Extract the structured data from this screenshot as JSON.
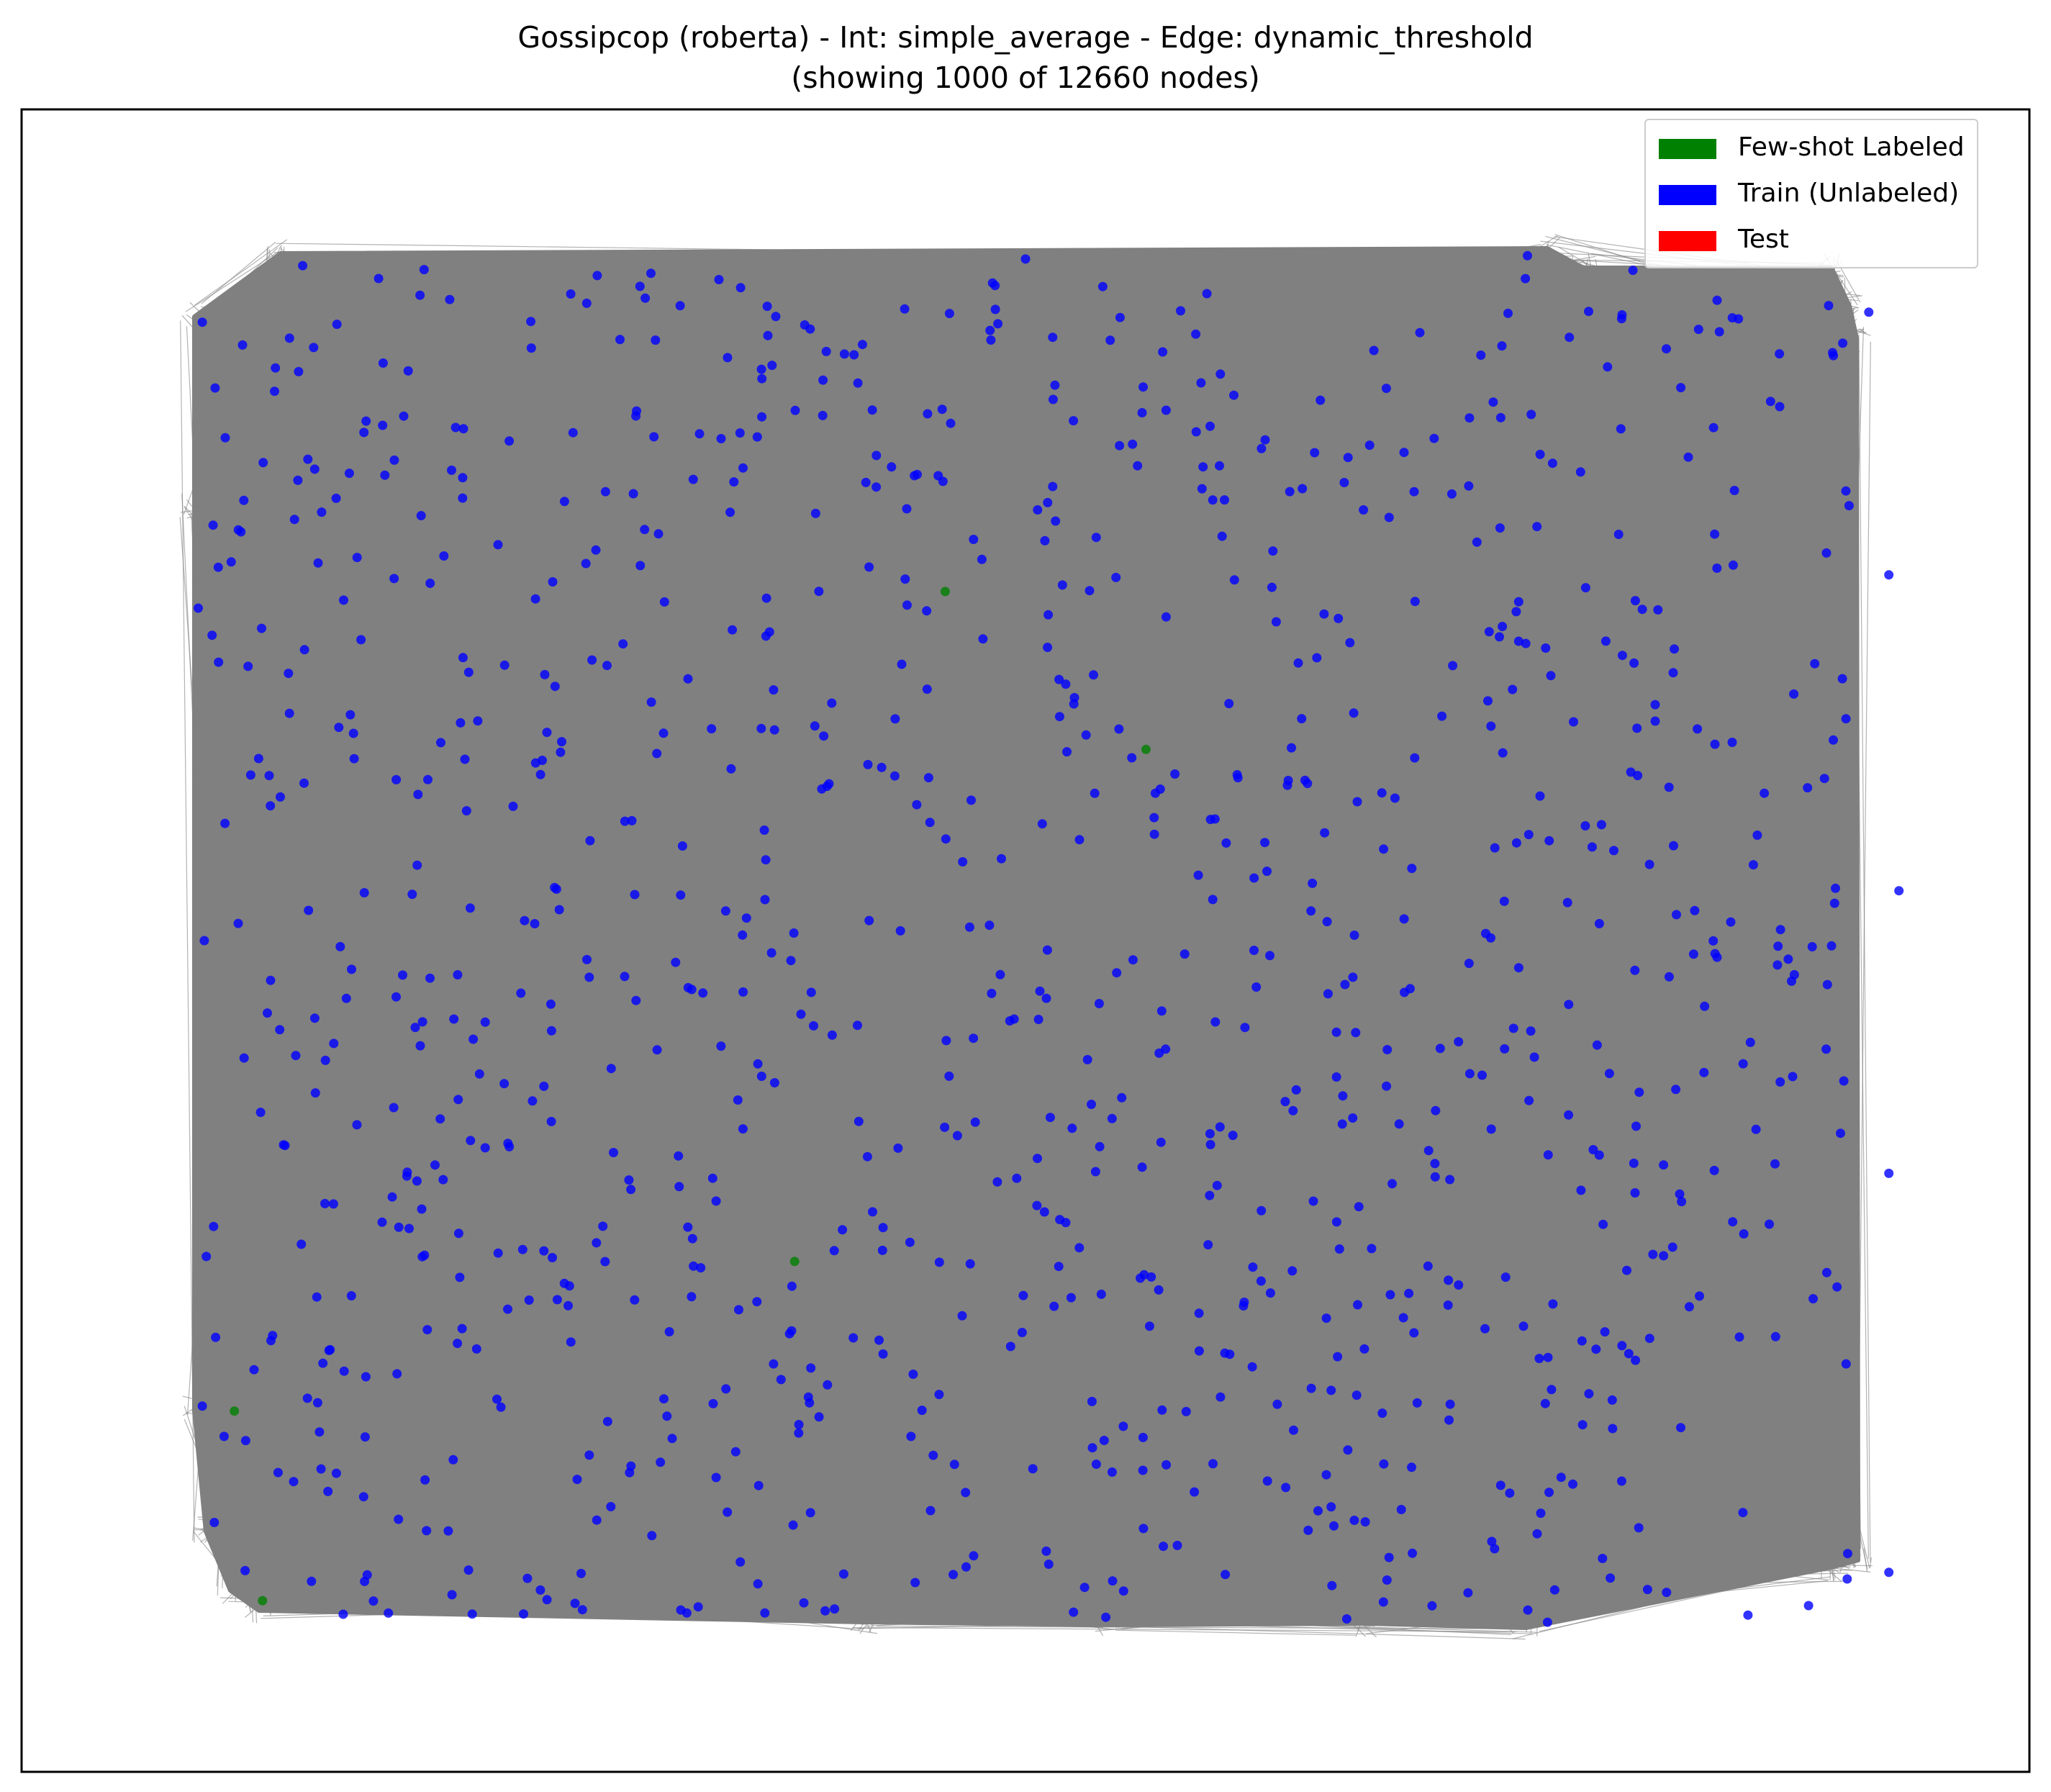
{
  "title": {
    "line1": "Gossipcop (roberta) - Int: simple_average - Edge: dynamic_threshold",
    "line2": "(showing 1000 of 12660 nodes)"
  },
  "colors": {
    "edge": "#808080",
    "few_shot": "#008000",
    "train": "#0000ff",
    "test": "#ff0000",
    "frame": "#000000"
  },
  "legend": {
    "items": [
      {
        "label": "Few-shot Labeled",
        "color": "#008000"
      },
      {
        "label": "Train (Unlabeled)",
        "color": "#0000ff"
      },
      {
        "label": "Test",
        "color": "#ff0000"
      }
    ]
  },
  "chart_data": {
    "type": "network",
    "total_nodes": 12660,
    "shown_nodes": 1000,
    "axes_visible": false,
    "legend_position": "top-right",
    "few_shot_nodes": [
      [
        0.46,
        0.29
      ],
      [
        0.56,
        0.385
      ],
      [
        0.385,
        0.693
      ],
      [
        0.106,
        0.783
      ],
      [
        0.12,
        0.897
      ]
    ],
    "train_nodes_sample": [
      [
        0.09,
        0.128
      ],
      [
        0.14,
        0.094
      ],
      [
        0.5,
        0.09
      ],
      [
        0.75,
        0.088
      ],
      [
        0.9,
        0.118
      ],
      [
        0.92,
        0.122
      ],
      [
        0.088,
        0.3
      ],
      [
        0.091,
        0.5
      ],
      [
        0.092,
        0.69
      ],
      [
        0.09,
        0.78
      ],
      [
        0.096,
        0.85
      ],
      [
        0.93,
        0.28
      ],
      [
        0.935,
        0.47
      ],
      [
        0.93,
        0.64
      ],
      [
        0.93,
        0.88
      ],
      [
        0.76,
        0.91
      ],
      [
        0.54,
        0.907
      ],
      [
        0.25,
        0.905
      ],
      [
        0.89,
        0.9
      ],
      [
        0.66,
        0.908
      ]
    ]
  }
}
